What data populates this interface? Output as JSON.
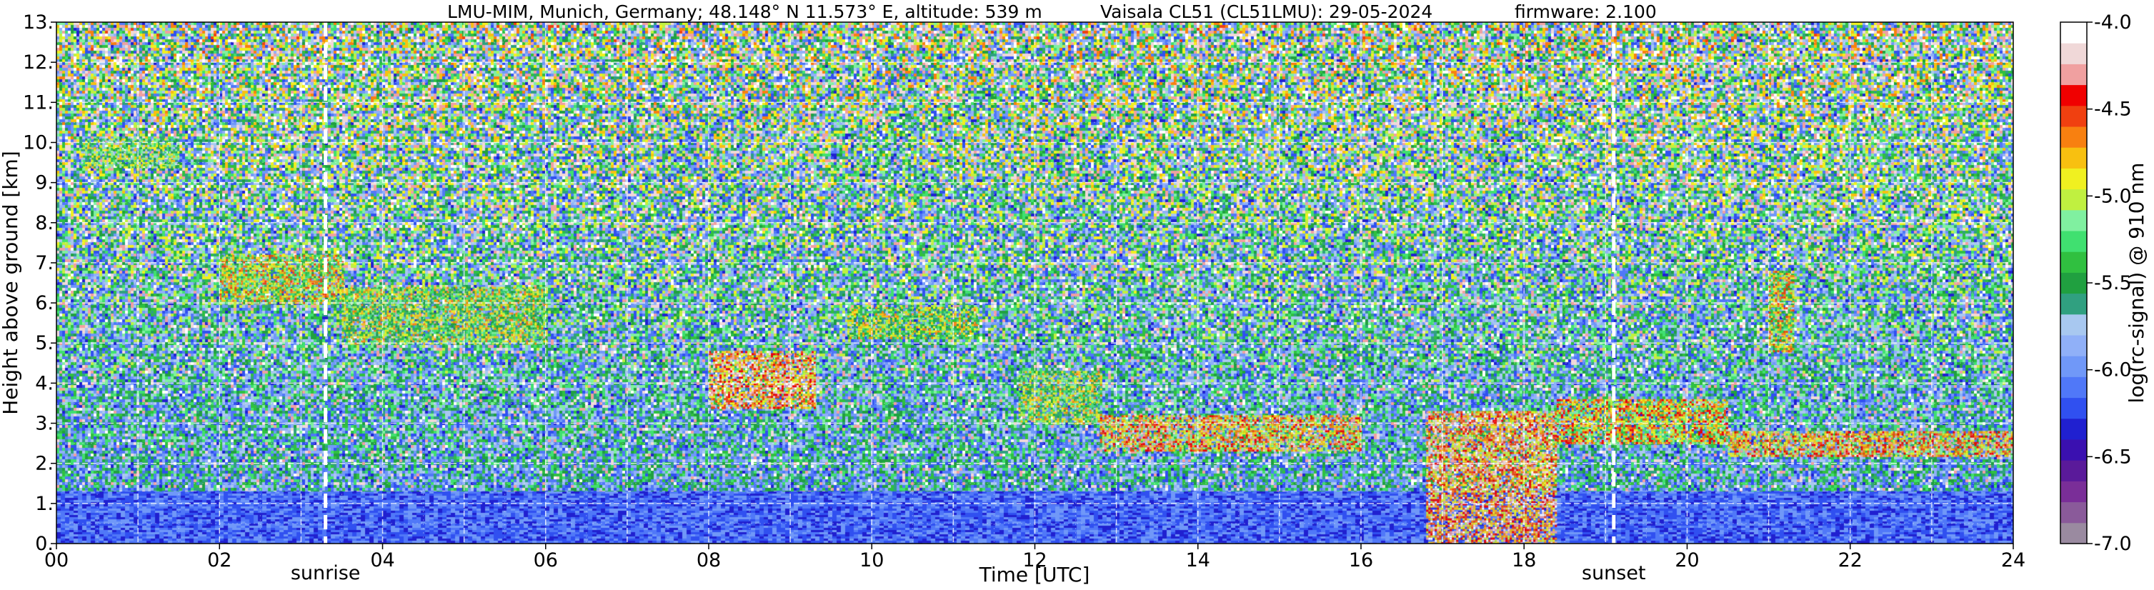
{
  "chart_data": {
    "type": "heatmap",
    "title": "LMU-MIM, Munich, Germany; 48.148° N 11.573° E, altitude: 539 m",
    "instrument": "Vaisala CL51 (CL51LMU): 29-05-2024",
    "firmware": "firmware: 2.100",
    "xlabel": "Time [UTC]",
    "ylabel": "Height above ground [km]",
    "xlim": [
      0,
      24
    ],
    "ylim": [
      0,
      13
    ],
    "x_ticks": [
      "00",
      "02",
      "04",
      "06",
      "08",
      "10",
      "12",
      "14",
      "16",
      "18",
      "20",
      "22",
      "24"
    ],
    "y_ticks": [
      "0.",
      "1.",
      "2.",
      "3.",
      "4.",
      "5.",
      "6.",
      "7.",
      "8.",
      "9.",
      "10.",
      "11.",
      "12.",
      "13."
    ],
    "grid": true,
    "colorbar": {
      "label": "log(rc-signal) @ 910 nm",
      "range": [
        -7.0,
        -4.0
      ],
      "ticks": [
        "-4.0",
        "-4.5",
        "-5.0",
        "-5.5",
        "-6.0",
        "-6.5",
        "-7.0"
      ],
      "colors": [
        "#9a8aa0",
        "#8a5a9a",
        "#7a2e98",
        "#5a1a9a",
        "#3a10b0",
        "#2020d0",
        "#3050f0",
        "#5078f8",
        "#7098f8",
        "#90b0f8",
        "#a8c8f0",
        "#30a080",
        "#20a040",
        "#30c040",
        "#40e070",
        "#80f0a0",
        "#c0f040",
        "#f0f020",
        "#f8c010",
        "#f88010",
        "#f04010",
        "#f00000",
        "#f0a0a0",
        "#f0d8d8",
        "#ffffff"
      ]
    },
    "markers": [
      {
        "label": "sunrise",
        "x": 3.3
      },
      {
        "label": "sunset",
        "x": 19.1
      }
    ],
    "cloud_layers": [
      {
        "x0": 0.3,
        "x1": 1.5,
        "y0": 9.4,
        "y1": 10.1,
        "level": 0.75
      },
      {
        "x0": 2.0,
        "x1": 3.5,
        "y0": 6.0,
        "y1": 7.2,
        "level": 0.85
      },
      {
        "x0": 3.5,
        "x1": 6.0,
        "y0": 5.0,
        "y1": 6.4,
        "level": 0.8
      },
      {
        "x0": 8.0,
        "x1": 9.3,
        "y0": 3.4,
        "y1": 4.8,
        "level": 1.0
      },
      {
        "x0": 9.7,
        "x1": 11.3,
        "y0": 5.1,
        "y1": 5.9,
        "level": 0.8
      },
      {
        "x0": 11.8,
        "x1": 12.8,
        "y0": 3.0,
        "y1": 4.3,
        "level": 0.8
      },
      {
        "x0": 12.8,
        "x1": 16.0,
        "y0": 2.3,
        "y1": 3.2,
        "level": 0.95
      },
      {
        "x0": 16.8,
        "x1": 18.4,
        "y0": 0.0,
        "y1": 3.3,
        "level": 1.0
      },
      {
        "x0": 18.4,
        "x1": 20.5,
        "y0": 2.5,
        "y1": 3.6,
        "level": 0.9
      },
      {
        "x0": 21.0,
        "x1": 21.3,
        "y0": 4.8,
        "y1": 6.8,
        "level": 0.85
      },
      {
        "x0": 20.5,
        "x1": 24.0,
        "y0": 2.2,
        "y1": 2.8,
        "level": 0.95
      }
    ],
    "boundary_layer": {
      "top": 1.3,
      "level": 0.25
    }
  }
}
